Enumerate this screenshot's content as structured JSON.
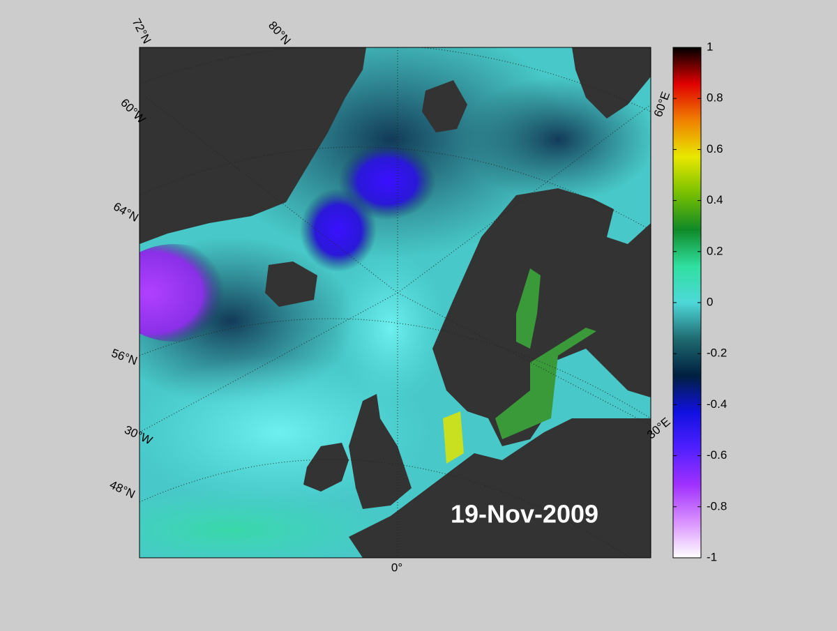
{
  "map": {
    "date_label": "19-Nov-2009",
    "graticule_labels": [
      "72°N",
      "80°N",
      "60°W",
      "64°N",
      "56°N",
      "30°W",
      "48°N",
      "0°",
      "60°E",
      "30°E"
    ],
    "colorbar": {
      "lim": [
        -1,
        1
      ],
      "ticks": [
        1,
        0.8,
        0.6,
        0.4,
        0.2,
        0,
        -0.2,
        -0.4,
        -0.6,
        -0.8,
        -1
      ],
      "colormap": [
        "#ffffff",
        "#d890ff",
        "#a030ff",
        "#5020ff",
        "#1010e0",
        "#002040",
        "#1e6a70",
        "#4ed8d8",
        "#30e0a0",
        "#108a28",
        "#78c000",
        "#e8e800",
        "#f08000",
        "#e00000",
        "#000000"
      ]
    }
  }
}
